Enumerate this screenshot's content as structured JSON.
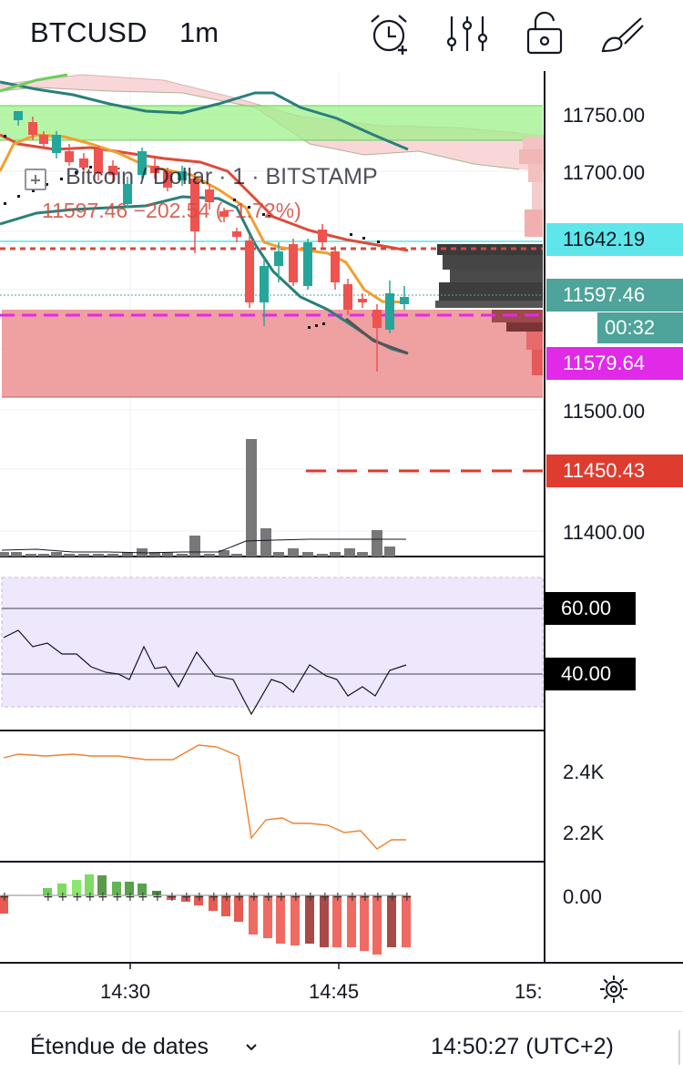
{
  "header": {
    "symbol": "BTCUSD",
    "interval": "1m",
    "icons": [
      "alarm-add-icon",
      "indicators-icon",
      "unlock-icon",
      "drawing-brush-icon"
    ]
  },
  "legend": {
    "title": "Bitcoin / Dollar · 1 · BITSTAMP",
    "values": "11597.46 −202.54 (−1.72%)"
  },
  "price_axis": {
    "labels": [
      "11750.00",
      "11700.00",
      "11500.00",
      "11400.00"
    ],
    "last_price": "11597.46",
    "countdown": "00:32",
    "cyan_level": "11642.19",
    "magenta_level": "11579.64",
    "red_level": "11450.43"
  },
  "rsi_axis": {
    "upper": "60.00",
    "lower": "40.00"
  },
  "indicator2_axis": {
    "labels": [
      "2.4K",
      "2.2K"
    ]
  },
  "indicator3_axis": {
    "labels": [
      "0.00"
    ]
  },
  "time_axis": {
    "labels": [
      "14:30",
      "14:45",
      "15:"
    ]
  },
  "footer": {
    "date_range_label": "Étendue de dates",
    "clock": "14:50:27 (UTC+2)"
  },
  "colors": {
    "bull": "#26a69a",
    "bear": "#ef5350",
    "ma_orange": "#f0a030",
    "ma_red": "#e04a36",
    "bb_teal": "#2a7f7a",
    "cyan": "#5ee6ea",
    "magenta": "#e02ae8"
  }
}
